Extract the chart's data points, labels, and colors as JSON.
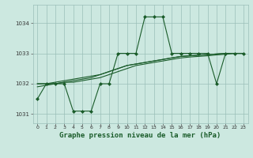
{
  "background_color": "#cce8e0",
  "plot_bg_color": "#cce8e0",
  "grid_color": "#9abfb8",
  "line_color": "#1a5c2a",
  "title": "Graphe pression niveau de la mer (hPa)",
  "title_fontsize": 6.5,
  "xlim": [
    -0.5,
    23.5
  ],
  "ylim": [
    1030.7,
    1034.6
  ],
  "yticks": [
    1031,
    1032,
    1033,
    1034
  ],
  "xticks": [
    0,
    1,
    2,
    3,
    4,
    5,
    6,
    7,
    8,
    9,
    10,
    11,
    12,
    13,
    14,
    15,
    16,
    17,
    18,
    19,
    20,
    21,
    22,
    23
  ],
  "series_main": {
    "x": [
      0,
      1,
      2,
      3,
      4,
      5,
      6,
      7,
      8,
      9,
      10,
      11,
      12,
      13,
      14,
      15,
      16,
      17,
      18,
      19,
      20,
      21,
      22,
      23
    ],
    "y": [
      1031.5,
      1032.0,
      1032.0,
      1032.0,
      1031.1,
      1031.1,
      1031.1,
      1032.0,
      1032.0,
      1033.0,
      1033.0,
      1033.0,
      1034.2,
      1034.2,
      1034.2,
      1033.0,
      1033.0,
      1033.0,
      1033.0,
      1033.0,
      1032.0,
      1033.0,
      1033.0,
      1033.0
    ],
    "marker": "D",
    "markersize": 2.0,
    "linewidth": 0.8
  },
  "series_smooth": [
    {
      "x": [
        0,
        1,
        2,
        3,
        4,
        5,
        6,
        7,
        8,
        9,
        10,
        11,
        12,
        13,
        14,
        15,
        16,
        17,
        18,
        19,
        20,
        21,
        22,
        23
      ],
      "y": [
        1032.0,
        1032.0,
        1032.0,
        1032.05,
        1032.05,
        1032.1,
        1032.15,
        1032.2,
        1032.3,
        1032.4,
        1032.5,
        1032.6,
        1032.65,
        1032.7,
        1032.75,
        1032.8,
        1032.85,
        1032.88,
        1032.9,
        1032.92,
        1032.95,
        1032.97,
        1033.0,
        1033.0
      ],
      "linewidth": 0.8
    },
    {
      "x": [
        0,
        1,
        2,
        3,
        4,
        5,
        6,
        7,
        8,
        9,
        10,
        11,
        12,
        13,
        14,
        15,
        16,
        17,
        18,
        19,
        20,
        21,
        22,
        23
      ],
      "y": [
        1032.0,
        1032.0,
        1032.05,
        1032.1,
        1032.15,
        1032.2,
        1032.25,
        1032.3,
        1032.4,
        1032.5,
        1032.6,
        1032.65,
        1032.7,
        1032.75,
        1032.8,
        1032.85,
        1032.9,
        1032.92,
        1032.94,
        1032.96,
        1032.98,
        1033.0,
        1033.0,
        1033.0
      ],
      "linewidth": 0.8
    },
    {
      "x": [
        0,
        1,
        2,
        3,
        4,
        5,
        6,
        7,
        8,
        9,
        10,
        11,
        12,
        13,
        14,
        15,
        16,
        17,
        18,
        19,
        20,
        21,
        22,
        23
      ],
      "y": [
        1031.9,
        1031.95,
        1032.0,
        1032.05,
        1032.1,
        1032.15,
        1032.2,
        1032.3,
        1032.4,
        1032.5,
        1032.6,
        1032.65,
        1032.7,
        1032.75,
        1032.8,
        1032.85,
        1032.9,
        1032.92,
        1032.94,
        1032.96,
        1032.98,
        1033.0,
        1033.0,
        1033.0
      ],
      "linewidth": 0.8
    }
  ]
}
